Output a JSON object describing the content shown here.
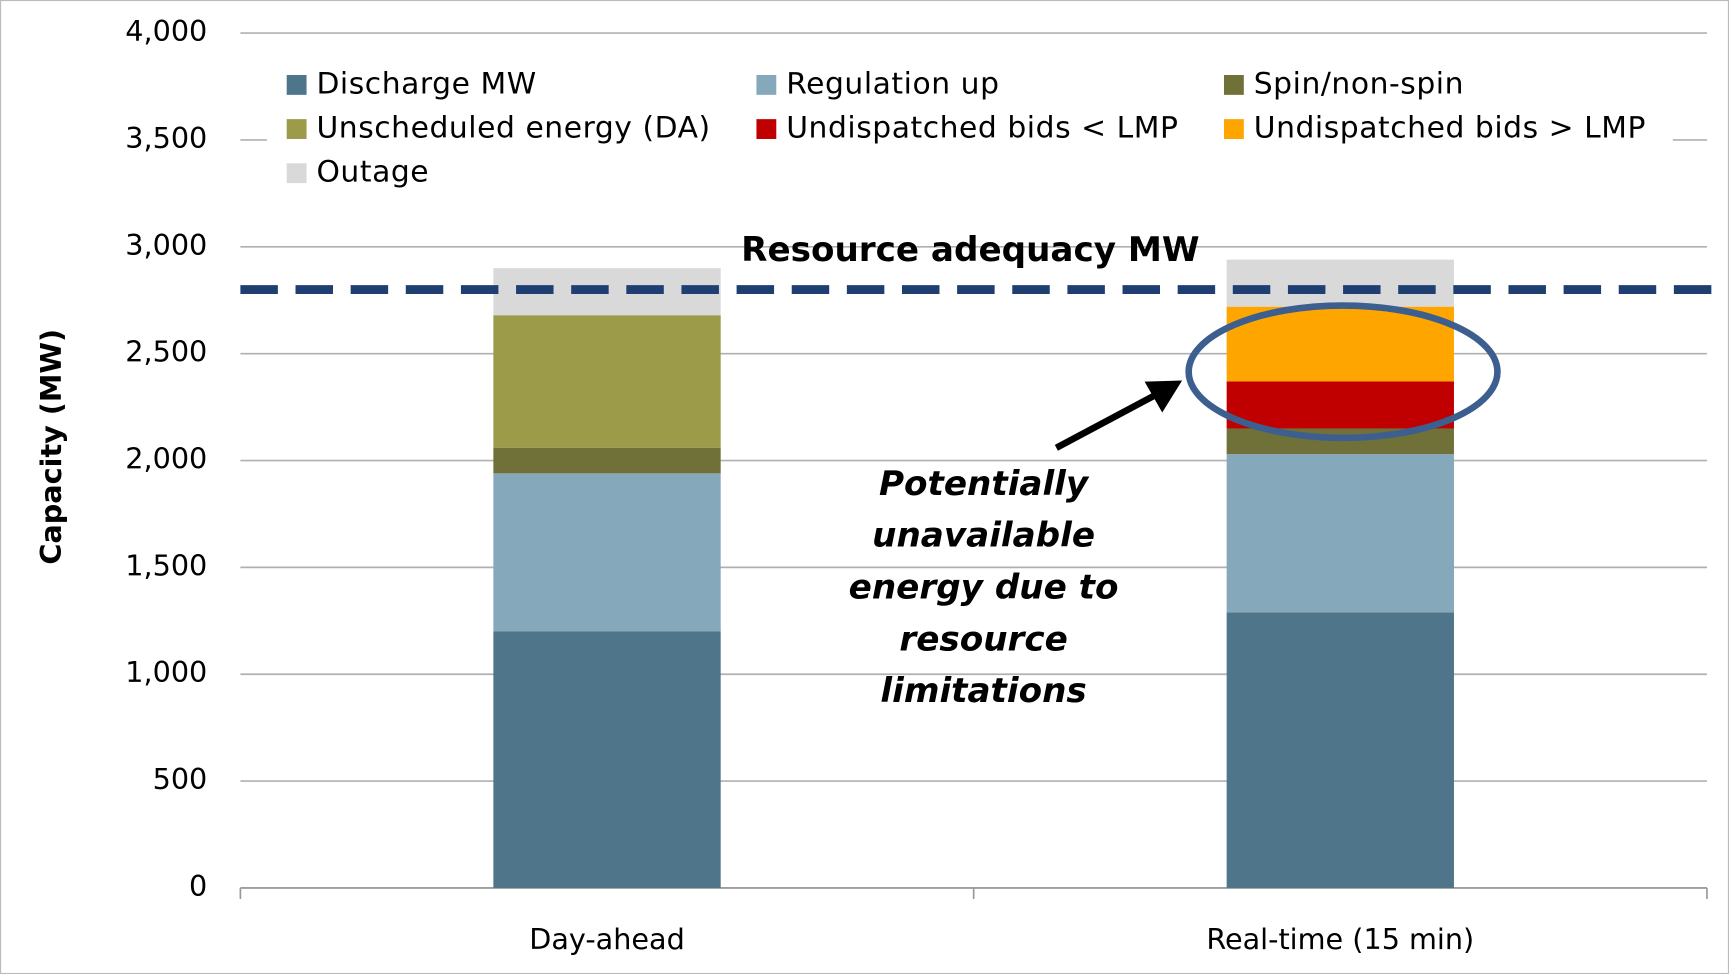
{
  "chart_data": {
    "type": "stacked_bar",
    "y_label": "Capacity (MW)",
    "categories": [
      "Day-ahead",
      "Real-time (15 min)"
    ],
    "series": [
      {
        "name": "Discharge MW",
        "color": "#4e758a",
        "values": [
          1200,
          1290
        ]
      },
      {
        "name": "Regulation up",
        "color": "#85a8bb",
        "values": [
          740,
          740
        ]
      },
      {
        "name": "Spin/non-spin",
        "color": "#6f7138",
        "values": [
          120,
          120
        ]
      },
      {
        "name": "Unscheduled energy (DA)",
        "color": "#9b9b4a",
        "values": [
          620,
          0
        ]
      },
      {
        "name": "Undispatched bids  < LMP",
        "color": "#c00000",
        "values": [
          0,
          220
        ]
      },
      {
        "name": "Undispatched bids  >  LMP",
        "color": "#ffa500",
        "values": [
          0,
          350
        ]
      },
      {
        "name": "Outage",
        "color": "#d9d9d9",
        "values": [
          220,
          220
        ]
      }
    ],
    "ylim": [
      0,
      4000
    ],
    "yticks": [
      0,
      500,
      {
        "value": 1000,
        "label": "1,000"
      },
      {
        "value": 1500,
        "label": "1,500"
      },
      {
        "value": 2000,
        "label": "2,000"
      },
      {
        "value": 2500,
        "label": "2,500"
      },
      {
        "value": 3000,
        "label": "3,000"
      },
      {
        "value": 3500,
        "label": "3,500"
      },
      {
        "value": 4000,
        "label": "4,000"
      }
    ],
    "grid": true,
    "reference_line": {
      "label": "Resource adequacy MW",
      "value": 2800,
      "color": "#1f3f73"
    },
    "annotation": [
      "Potentially",
      "unavailable",
      "energy due to",
      "resource",
      "limitations"
    ]
  }
}
